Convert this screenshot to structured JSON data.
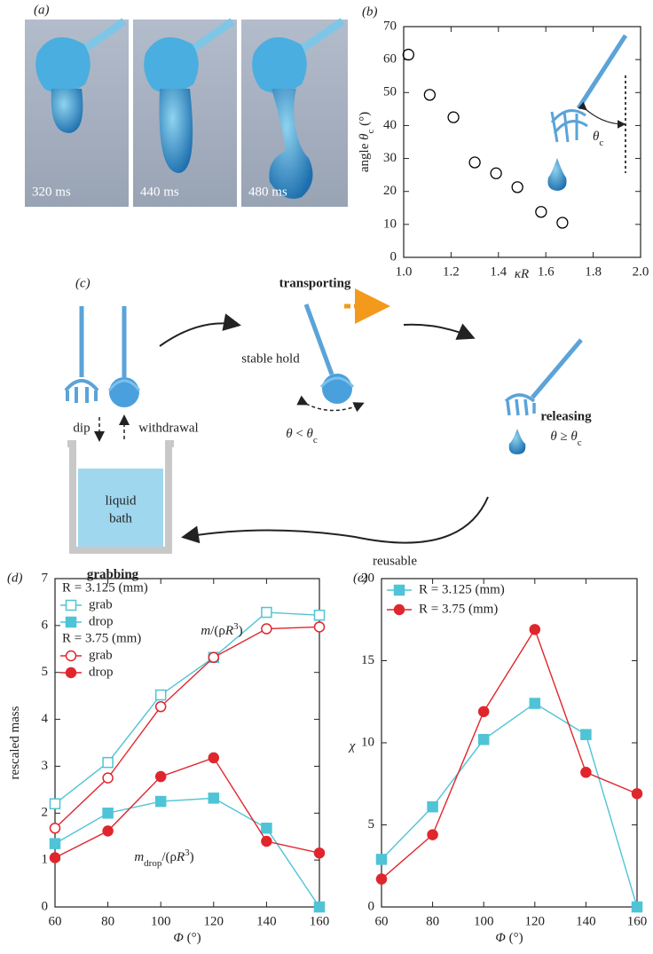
{
  "panel_a": {
    "label": "(a)",
    "frames": [
      "320 ms",
      "440 ms",
      "480 ms"
    ]
  },
  "panel_c": {
    "label": "(c)",
    "transporting": "transporting",
    "stable_hold": "stable hold",
    "hold_condition": [
      {
        "i": "θ"
      },
      {
        "text": " < "
      },
      {
        "i": "θ"
      },
      {
        "sub": "c"
      }
    ],
    "releasing": "releasing",
    "release_condition": [
      {
        "i": "θ"
      },
      {
        "text": " ≥ "
      },
      {
        "i": "θ"
      },
      {
        "sub": "c"
      }
    ],
    "dip": "dip",
    "withdrawal": "withdrawal",
    "bath": [
      "liquid",
      "bath"
    ],
    "grabbing": "grabbing",
    "reusable": "reusable"
  },
  "chart_data": [
    {
      "type": "scatter",
      "panel": "(b)",
      "x": [
        1.02,
        1.11,
        1.21,
        1.3,
        1.39,
        1.48,
        1.58,
        1.67
      ],
      "values": [
        61.5,
        49.3,
        42.5,
        28.8,
        25.5,
        21.3,
        13.8,
        10.5
      ],
      "color": "#000000",
      "xlim": [
        1,
        2
      ],
      "xticks": [
        {
          "value": 1,
          "label": "1.0"
        },
        1.2,
        1.4,
        1.6,
        1.8,
        {
          "value": 2,
          "label": "2.0"
        }
      ],
      "ylim": [
        0,
        70
      ],
      "yticks": [
        0,
        10,
        20,
        30,
        40,
        50,
        60,
        70
      ],
      "x_label": [
        {
          "i": "κR"
        }
      ],
      "y_label": [
        {
          "text": "angle "
        },
        {
          "i": "θ"
        },
        {
          "sub": "c"
        },
        {
          "text": " (°)"
        }
      ],
      "inset_label": [
        {
          "i": "θ"
        },
        {
          "sub": "c"
        }
      ]
    },
    {
      "type": "line",
      "panel": "(d)",
      "x": [
        60,
        80,
        100,
        120,
        140,
        160
      ],
      "legend_groups": [
        "R = 3.125 (mm)",
        "R = 3.75 (mm)"
      ],
      "series": [
        {
          "name": "grab",
          "group": 0,
          "marker": "square",
          "filled": false,
          "color": "#4fc4d6",
          "values": [
            2.2,
            3.08,
            4.52,
            5.32,
            6.28,
            6.22
          ]
        },
        {
          "name": "drop",
          "group": 0,
          "marker": "square",
          "filled": true,
          "color": "#4fc4d6",
          "values": [
            1.35,
            2.0,
            2.25,
            2.32,
            1.68,
            0
          ]
        },
        {
          "name": "grab",
          "group": 1,
          "marker": "circle",
          "filled": false,
          "color": "#e0262d",
          "values": [
            1.68,
            2.75,
            4.27,
            5.32,
            5.93,
            5.97
          ]
        },
        {
          "name": "drop",
          "group": 1,
          "marker": "circle",
          "filled": true,
          "color": "#e0262d",
          "values": [
            1.05,
            1.62,
            2.78,
            3.18,
            1.4,
            1.15
          ]
        }
      ],
      "xlim": [
        60,
        160
      ],
      "xticks": [
        60,
        80,
        100,
        120,
        140,
        160
      ],
      "ylim": [
        0,
        7
      ],
      "yticks": [
        0,
        1,
        2,
        3,
        4,
        5,
        6,
        7
      ],
      "x_label": [
        {
          "i": "Φ"
        },
        {
          "text": " (°)"
        }
      ],
      "y_label": [
        {
          "text": "rescaled mass"
        }
      ],
      "annotations": [
        [
          {
            "i": "m"
          },
          {
            "text": "/(ρ"
          },
          {
            "i": "R"
          },
          {
            "sup": "3"
          },
          {
            "text": ")"
          }
        ],
        [
          {
            "i": "m"
          },
          {
            "sub": "drop"
          },
          {
            "text": "/(ρ"
          },
          {
            "i": "R"
          },
          {
            "sup": "3"
          },
          {
            "text": ")"
          }
        ]
      ]
    },
    {
      "type": "line",
      "panel": "(e)",
      "x": [
        60,
        80,
        100,
        120,
        140,
        160
      ],
      "series": [
        {
          "name": "R = 3.125 (mm)",
          "marker": "square",
          "filled": true,
          "color": "#4fc4d6",
          "values": [
            2.9,
            6.1,
            10.2,
            12.4,
            10.5,
            0
          ]
        },
        {
          "name": "R = 3.75 (mm)",
          "marker": "circle",
          "filled": true,
          "color": "#e0262d",
          "values": [
            1.7,
            4.4,
            11.9,
            16.9,
            8.2,
            6.9
          ]
        }
      ],
      "xlim": [
        60,
        160
      ],
      "xticks": [
        60,
        80,
        100,
        120,
        140,
        160
      ],
      "ylim": [
        0,
        20
      ],
      "yticks": [
        0,
        5,
        10,
        15,
        20
      ],
      "x_label": [
        {
          "i": "Φ"
        },
        {
          "text": " (°)"
        }
      ],
      "y_label": [
        {
          "i": "χ"
        }
      ]
    }
  ]
}
